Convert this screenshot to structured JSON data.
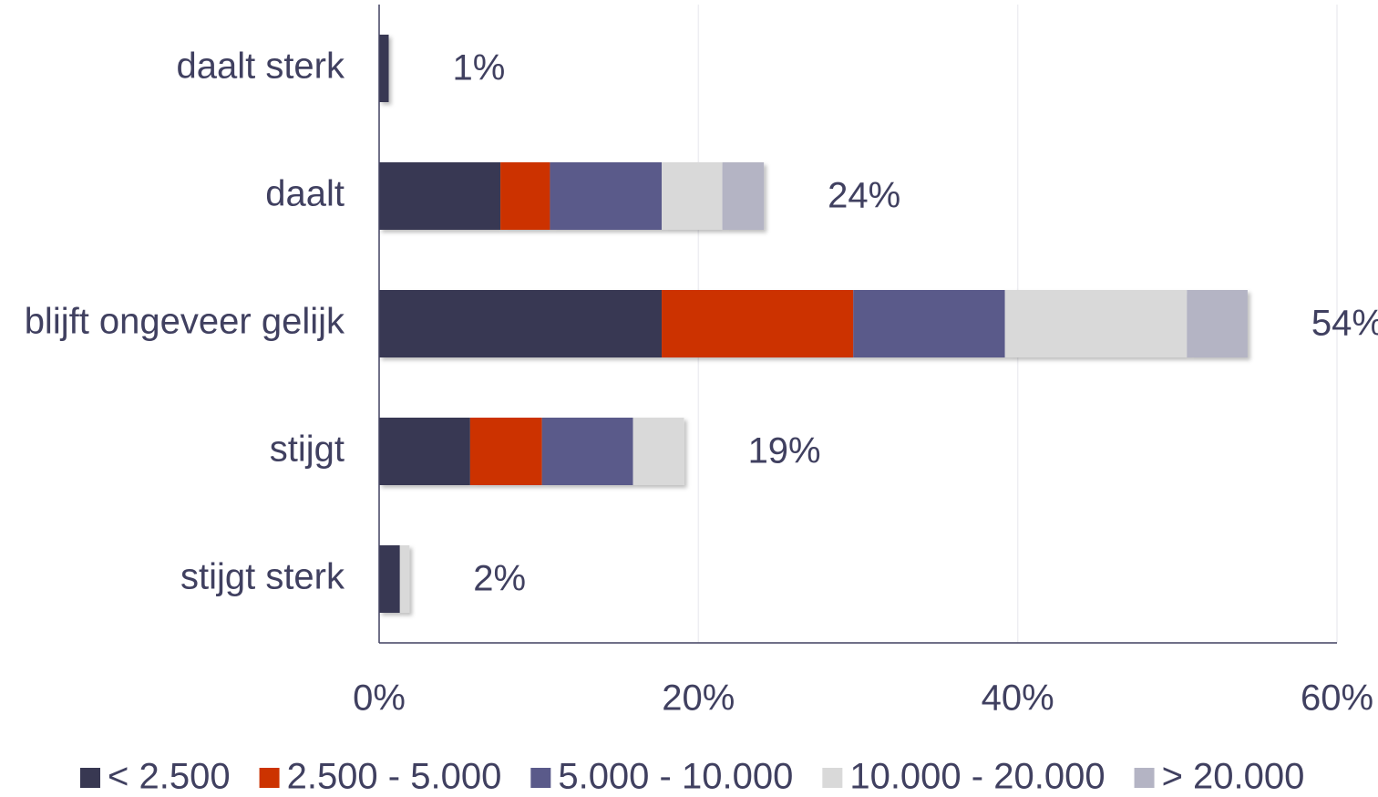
{
  "chart_data": {
    "type": "stacked-bar-horizontal",
    "categories": [
      "daalt sterk",
      "daalt",
      "blijft ongeveer gelijk",
      "stijgt",
      "stijgt sterk"
    ],
    "series": [
      {
        "name": "< 2.500",
        "color": "#383852",
        "values": [
          0.6,
          7.6,
          17.7,
          5.7,
          1.3
        ]
      },
      {
        "name": "2.500 - 5.000",
        "color": "#cc3300",
        "values": [
          0,
          3.1,
          12.0,
          4.5,
          0
        ]
      },
      {
        "name": "5.000 - 10.000",
        "color": "#5a5a8a",
        "values": [
          0,
          7.0,
          9.5,
          5.7,
          0
        ]
      },
      {
        "name": "10.000 - 20.000",
        "color": "#d9d9d9",
        "values": [
          0,
          3.8,
          11.4,
          3.2,
          0.6
        ]
      },
      {
        "name": "> 20.000",
        "color": "#b4b4c4",
        "values": [
          0,
          2.6,
          3.8,
          0,
          0
        ]
      }
    ],
    "totals": [
      1,
      24,
      54,
      19,
      2
    ],
    "total_labels": [
      "1%",
      "24%",
      "54%",
      "19%",
      "2%"
    ],
    "xlim": [
      0,
      60
    ],
    "xticks": [
      {
        "value": 0,
        "label": "0%"
      },
      {
        "value": 20,
        "label": "20%"
      },
      {
        "value": 40,
        "label": "40%"
      },
      {
        "value": 60,
        "label": "60%"
      }
    ],
    "grid": true,
    "legend": "bottom"
  }
}
